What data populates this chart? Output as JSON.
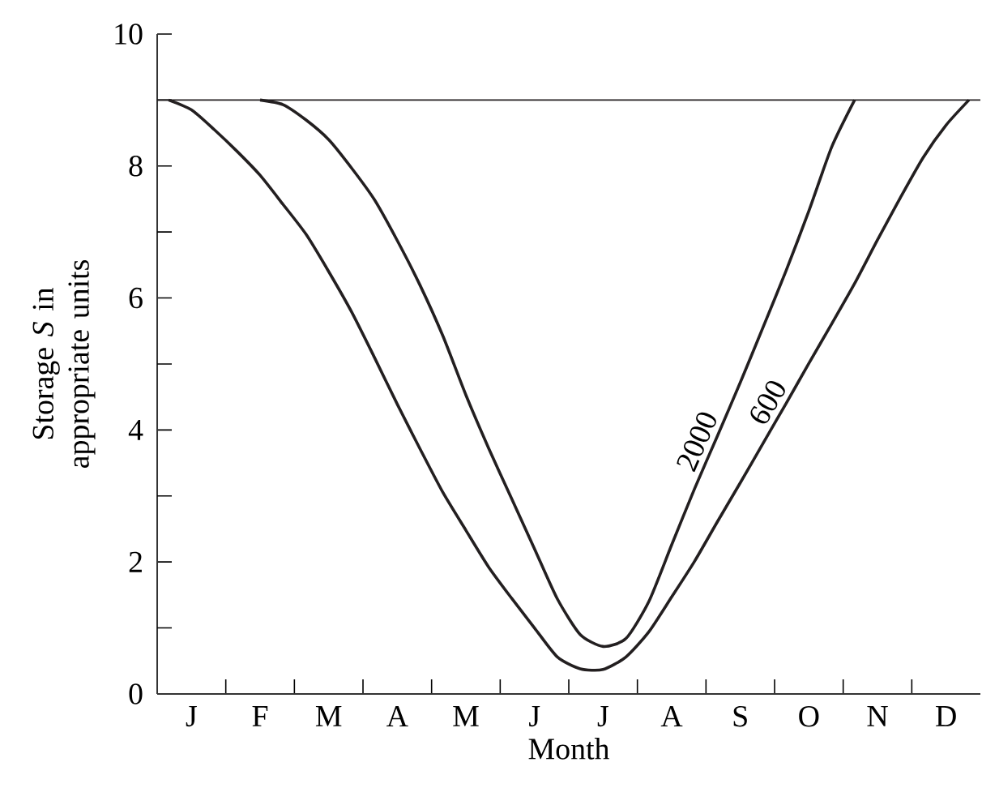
{
  "chart_data": {
    "type": "line",
    "xlabel": "Month",
    "ylabel": "Storage *S* in appropriate units",
    "categories": [
      null,
      "J",
      null,
      null,
      "F",
      null,
      null,
      "M",
      null,
      null,
      "A",
      null,
      null,
      "M",
      null,
      null,
      "J",
      null,
      null,
      "J",
      null,
      null,
      "A",
      null,
      null,
      "S",
      null,
      null,
      "O",
      null,
      null,
      "N",
      null,
      null,
      "D",
      null
    ],
    "ylim": [
      0,
      10
    ],
    "yticks": [
      0,
      {
        "value": 1,
        "label": null
      },
      2,
      {
        "value": 3,
        "label": null
      },
      4,
      {
        "value": 5,
        "label": null
      },
      6,
      {
        "value": 7,
        "label": null
      },
      8,
      {
        "value": 9,
        "label": null
      },
      10
    ],
    "grid": false,
    "marker": "none",
    "line_style": "solid",
    "ref_lines": [
      {
        "axis": "y",
        "value": 9,
        "color": "#231f20"
      }
    ],
    "series": [
      {
        "name": "2000",
        "color": "#231f20",
        "values": [
          null,
          null,
          null,
          null,
          9,
          8.93,
          8.7,
          8.4,
          7.97,
          7.49,
          6.87,
          6.19,
          5.42,
          4.53,
          3.72,
          2.96,
          2.2,
          1.44,
          0.9,
          0.72,
          0.84,
          1.4,
          2.26,
          3.11,
          3.91,
          4.72,
          5.56,
          6.41,
          7.32,
          8.29,
          9,
          null,
          null,
          null,
          null,
          null
        ]
      },
      {
        "name": "600",
        "color": "#231f20",
        "values": [
          9,
          8.85,
          8.55,
          8.22,
          7.86,
          7.42,
          6.97,
          6.4,
          5.79,
          5.1,
          4.39,
          3.71,
          3.05,
          2.48,
          1.92,
          1.45,
          1.0,
          0.56,
          0.38,
          0.37,
          0.56,
          0.94,
          1.47,
          2.01,
          2.61,
          3.2,
          3.8,
          4.4,
          5.01,
          5.61,
          6.22,
          6.88,
          7.52,
          8.13,
          8.62,
          9
        ]
      }
    ]
  }
}
